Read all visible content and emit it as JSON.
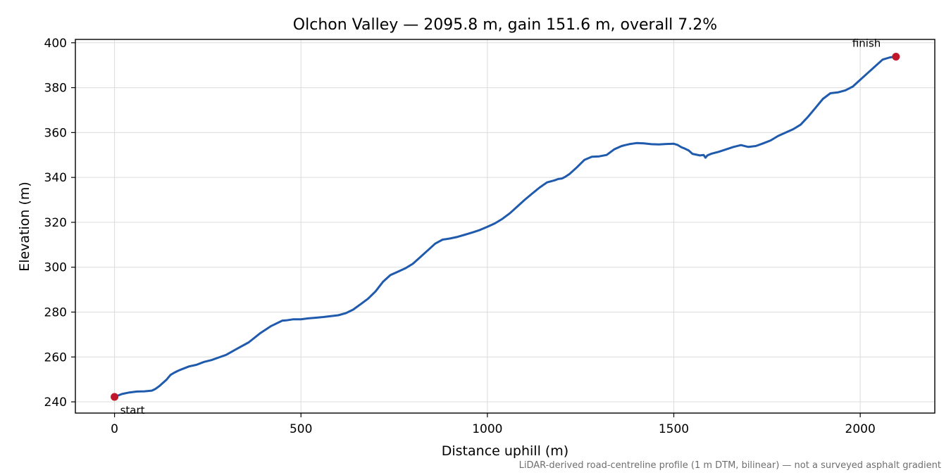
{
  "chart_data": {
    "type": "line",
    "title": "Olchon Valley — 2095.8 m, gain 151.6 m, overall 7.2%",
    "xlabel": "Distance uphill (m)",
    "ylabel": "Elevation (m)",
    "xlim": [
      -105,
      2200
    ],
    "ylim": [
      235,
      401.5
    ],
    "xticks": [
      0,
      500,
      1000,
      1500,
      2000
    ],
    "xtick_labels": [
      "0",
      "500",
      "1000",
      "1500",
      "2000"
    ],
    "yticks": [
      240,
      260,
      280,
      300,
      320,
      340,
      360,
      380,
      400
    ],
    "ytick_labels": [
      "240",
      "260",
      "280",
      "300",
      "320",
      "340",
      "360",
      "380",
      "400"
    ],
    "grid": true,
    "line_color": "#1f5aad",
    "marker_color": "#c0182a",
    "series": [
      {
        "x": [
          0,
          20,
          40,
          60,
          80,
          100,
          110,
          120,
          140,
          150,
          160,
          170,
          180,
          200,
          220,
          240,
          260,
          280,
          300,
          330,
          360,
          390,
          420,
          450,
          460,
          480,
          500,
          520,
          540,
          560,
          580,
          600,
          620,
          640,
          660,
          680,
          700,
          720,
          740,
          760,
          780,
          800,
          820,
          840,
          860,
          880,
          900,
          920,
          940,
          960,
          980,
          1000,
          1020,
          1040,
          1060,
          1080,
          1100,
          1120,
          1140,
          1160,
          1180,
          1190,
          1200,
          1210,
          1220,
          1240,
          1260,
          1280,
          1300,
          1320,
          1340,
          1360,
          1380,
          1400,
          1420,
          1440,
          1460,
          1480,
          1500,
          1510,
          1520,
          1530,
          1540,
          1550,
          1570,
          1580,
          1585,
          1590,
          1600,
          1620,
          1640,
          1660,
          1680,
          1700,
          1720,
          1740,
          1760,
          1780,
          1800,
          1820,
          1840,
          1860,
          1880,
          1900,
          1920,
          1940,
          1960,
          1980,
          2000,
          2020,
          2040,
          2060,
          2080,
          2095.8
        ],
        "y": [
          242.2,
          243.5,
          244.2,
          244.6,
          244.7,
          245,
          245.8,
          247,
          250,
          252,
          253,
          253.8,
          254.5,
          255.8,
          256.5,
          257.8,
          258.6,
          259.8,
          261,
          263.8,
          266.5,
          270.5,
          273.8,
          276.2,
          276.3,
          276.8,
          276.8,
          277.2,
          277.5,
          277.8,
          278.2,
          278.6,
          279.5,
          281.1,
          283.5,
          286,
          289.2,
          293.5,
          296.5,
          298,
          299.5,
          301.5,
          304.5,
          307.5,
          310.5,
          312.3,
          312.8,
          313.5,
          314.5,
          315.5,
          316.6,
          318,
          319.5,
          321.5,
          324,
          327,
          330,
          332.8,
          335.5,
          337.8,
          338.7,
          339.3,
          339.5,
          340.4,
          341.5,
          344.5,
          347.8,
          349.2,
          349.4,
          350,
          352.5,
          354,
          354.8,
          355.3,
          355.2,
          354.8,
          354.7,
          354.9,
          355,
          354.5,
          353.5,
          352.8,
          352,
          350.5,
          349.8,
          350,
          348.8,
          349.8,
          350.5,
          351.4,
          352.5,
          353.6,
          354.4,
          353.6,
          354,
          355.2,
          356.5,
          358.5,
          360,
          361.5,
          363.5,
          367,
          371,
          375,
          377.5,
          377.9,
          378.8,
          380.5,
          383.5,
          386.5,
          389.5,
          392.5,
          393.5,
          393.8
        ]
      }
    ],
    "annotations": [
      {
        "label": "start",
        "x": 0,
        "y": 242.2
      },
      {
        "label": "finish",
        "x": 2095.8,
        "y": 393.8
      }
    ],
    "footnote": "LiDAR-derived road-centreline profile (1 m DTM, bilinear) — not a surveyed asphalt gradient"
  }
}
